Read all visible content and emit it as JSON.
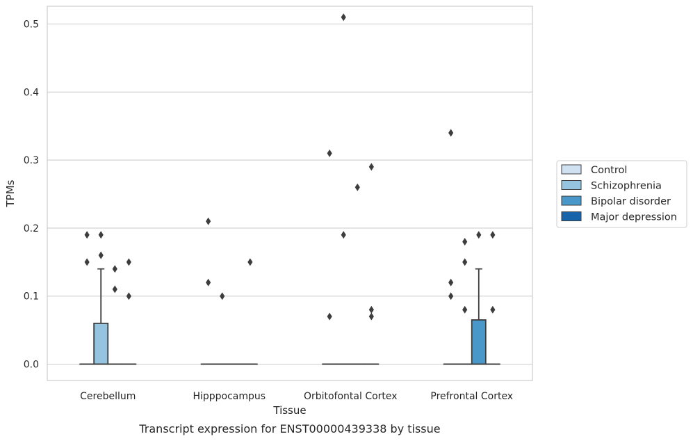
{
  "chart_data": {
    "type": "box",
    "title": "",
    "xlabel": "Tissue",
    "ylabel": "TPMs",
    "caption": "Transcript expression for ENST00000439338 by tissue",
    "ylim": [
      -0.025,
      0.537
    ],
    "yticks": [
      "0.0",
      "0.1",
      "0.2",
      "0.3",
      "0.4",
      "0.5"
    ],
    "grid": true,
    "legend_position": "right",
    "categories": [
      "Cerebellum",
      "Hipppocampus",
      "Orbitofontal Cortex",
      "Prefrontal Cortex"
    ],
    "series": [
      {
        "name": "Control",
        "color": "#d0e1f2"
      },
      {
        "name": "Schizophrenia",
        "color": "#94c4df"
      },
      {
        "name": "Bipolar disorder",
        "color": "#4a98c9"
      },
      {
        "name": "Major depression",
        "color": "#1764ab"
      }
    ],
    "boxes": [
      [
        {
          "q1": 0,
          "median": 0,
          "q3": 0,
          "whisker_low": 0,
          "whisker_high": 0,
          "outliers": [
            0.15,
            0.19
          ]
        },
        {
          "q1": 0,
          "median": 0,
          "q3": 0.06,
          "whisker_low": 0,
          "whisker_high": 0.14,
          "outliers": [
            0.16,
            0.19
          ]
        },
        {
          "q1": 0,
          "median": 0,
          "q3": 0,
          "whisker_low": 0,
          "whisker_high": 0,
          "outliers": [
            0.11,
            0.14
          ]
        },
        {
          "q1": 0,
          "median": 0,
          "q3": 0,
          "whisker_low": 0,
          "whisker_high": 0,
          "outliers": [
            0.1,
            0.15
          ]
        }
      ],
      [
        {
          "q1": 0,
          "median": 0,
          "q3": 0,
          "whisker_low": 0,
          "whisker_high": 0,
          "outliers": [
            0.12,
            0.21
          ]
        },
        {
          "q1": 0,
          "median": 0,
          "q3": 0,
          "whisker_low": 0,
          "whisker_high": 0,
          "outliers": [
            0.1
          ]
        },
        {
          "q1": 0,
          "median": 0,
          "q3": 0,
          "whisker_low": 0,
          "whisker_high": 0,
          "outliers": []
        },
        {
          "q1": 0,
          "median": 0,
          "q3": 0,
          "whisker_low": 0,
          "whisker_high": 0,
          "outliers": [
            0.15
          ]
        }
      ],
      [
        {
          "q1": 0,
          "median": 0,
          "q3": 0,
          "whisker_low": 0,
          "whisker_high": 0,
          "outliers": [
            0.07,
            0.31
          ]
        },
        {
          "q1": 0,
          "median": 0,
          "q3": 0,
          "whisker_low": 0,
          "whisker_high": 0,
          "outliers": [
            0.19,
            0.51
          ]
        },
        {
          "q1": 0,
          "median": 0,
          "q3": 0,
          "whisker_low": 0,
          "whisker_high": 0,
          "outliers": [
            0.26
          ]
        },
        {
          "q1": 0,
          "median": 0,
          "q3": 0,
          "whisker_low": 0,
          "whisker_high": 0,
          "outliers": [
            0.07,
            0.08,
            0.29
          ]
        }
      ],
      [
        {
          "q1": 0,
          "median": 0,
          "q3": 0,
          "whisker_low": 0,
          "whisker_high": 0,
          "outliers": [
            0.1,
            0.12,
            0.34
          ]
        },
        {
          "q1": 0,
          "median": 0,
          "q3": 0,
          "whisker_low": 0,
          "whisker_high": 0,
          "outliers": [
            0.08,
            0.15,
            0.18
          ]
        },
        {
          "q1": 0,
          "median": 0,
          "q3": 0.065,
          "whisker_low": 0,
          "whisker_high": 0.14,
          "outliers": [
            0.19
          ]
        },
        {
          "q1": 0,
          "median": 0,
          "q3": 0,
          "whisker_low": 0,
          "whisker_high": 0,
          "outliers": [
            0.08,
            0.19
          ]
        }
      ]
    ]
  }
}
